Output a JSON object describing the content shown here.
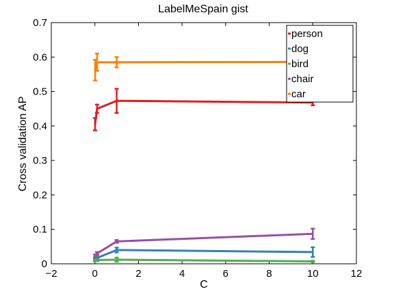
{
  "chart_data": {
    "type": "line",
    "title": "LabelMeSpain gist",
    "xlabel": "C",
    "ylabel": "Cross validation AP",
    "xlim": [
      -2,
      12
    ],
    "ylim": [
      0,
      0.7
    ],
    "xticks": [
      -2,
      0,
      2,
      4,
      6,
      8,
      10,
      12
    ],
    "yticks": [
      0,
      0.1,
      0.2,
      0.3,
      0.4,
      0.5,
      0.6,
      0.7
    ],
    "xtick_labels": [
      "−2",
      "0",
      "2",
      "4",
      "6",
      "8",
      "10",
      "12"
    ],
    "ytick_labels": [
      "0",
      "0.1",
      "0.2",
      "0.3",
      "0.4",
      "0.5",
      "0.6",
      "0.7"
    ],
    "grid": false,
    "legend_position": "top-right",
    "x": [
      0.01,
      0.1,
      1,
      10
    ],
    "series": [
      {
        "name": "person",
        "color": "#e41a1c",
        "values": [
          0.405,
          0.45,
          0.473,
          0.468
        ],
        "err": [
          0.018,
          0.012,
          0.035,
          0.008
        ]
      },
      {
        "name": "dog",
        "color": "#377eb8",
        "values": [
          0.013,
          0.017,
          0.04,
          0.034
        ],
        "err": [
          0.003,
          0.004,
          0.007,
          0.014
        ]
      },
      {
        "name": "bird",
        "color": "#4daf4a",
        "values": [
          0.01,
          0.011,
          0.012,
          0.007
        ],
        "err": [
          0.003,
          0.003,
          0.006,
          0.002
        ]
      },
      {
        "name": "chair",
        "color": "#984ea3",
        "values": [
          0.023,
          0.03,
          0.065,
          0.087
        ],
        "err": [
          0.004,
          0.004,
          0.004,
          0.015
        ]
      },
      {
        "name": "car",
        "color": "#ff7f00",
        "values": [
          0.562,
          0.585,
          0.585,
          0.586
        ],
        "err": [
          0.03,
          0.025,
          0.015,
          0.005
        ]
      }
    ]
  }
}
